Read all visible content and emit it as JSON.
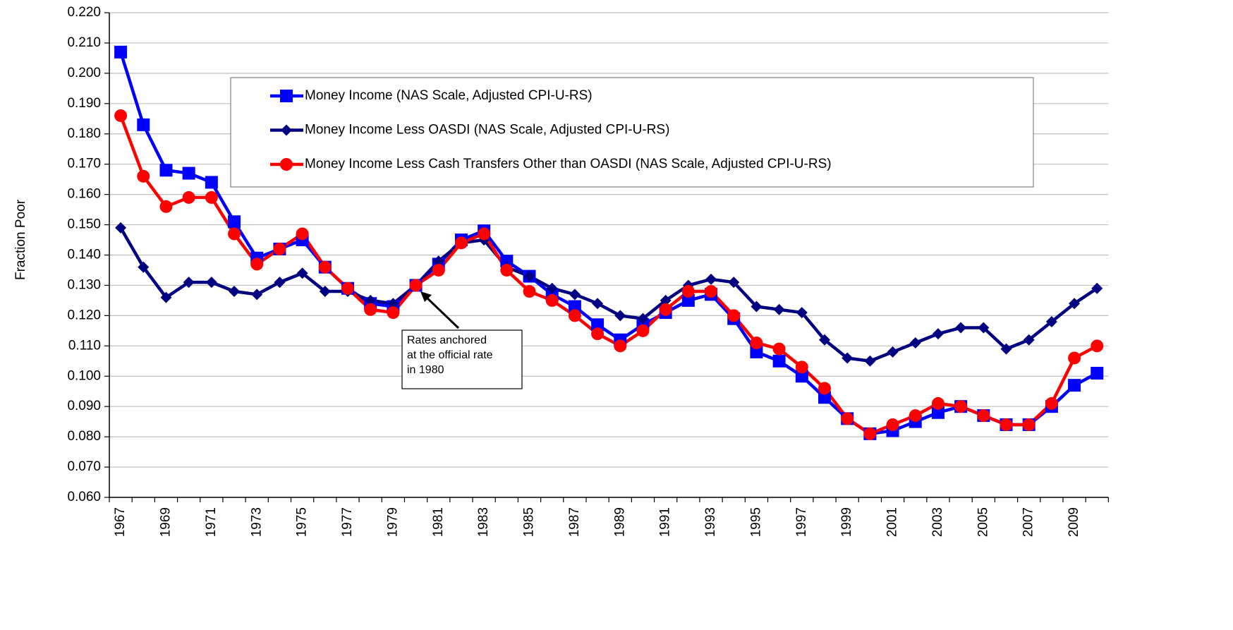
{
  "chart_data": {
    "type": "line",
    "y_label": "Fraction Poor",
    "categories": [
      "1967",
      null,
      "1969",
      null,
      "1971",
      null,
      "1973",
      null,
      "1975",
      null,
      "1977",
      null,
      "1979",
      null,
      "1981",
      null,
      "1983",
      null,
      "1985",
      null,
      "1987",
      null,
      "1989",
      null,
      "1991",
      null,
      "1993",
      null,
      "1995",
      null,
      "1997",
      null,
      "1999",
      null,
      "2001",
      null,
      "2003",
      null,
      "2005",
      null,
      "2007",
      null,
      "2009",
      null
    ],
    "series": [
      {
        "name": "Money Income (NAS Scale, Adjusted CPI-U-RS)",
        "color": "#0000ff",
        "marker": "square",
        "values": [
          0.207,
          0.183,
          0.168,
          0.167,
          0.164,
          0.151,
          0.139,
          0.142,
          0.145,
          0.136,
          0.129,
          0.124,
          0.123,
          0.13,
          0.137,
          0.145,
          0.148,
          0.138,
          0.133,
          0.127,
          0.123,
          0.117,
          0.112,
          0.117,
          0.121,
          0.125,
          0.127,
          0.119,
          0.108,
          0.105,
          0.1,
          0.093,
          0.086,
          0.081,
          0.082,
          0.085,
          0.088,
          0.09,
          0.087,
          0.084,
          0.084,
          0.09,
          0.097,
          0.101
        ]
      },
      {
        "name": "Money Income Less OASDI (NAS Scale, Adjusted CPI-U-RS)",
        "color": "#000080",
        "marker": "diamond",
        "values": [
          0.149,
          0.136,
          0.126,
          0.131,
          0.131,
          0.128,
          0.127,
          0.131,
          0.134,
          0.128,
          0.128,
          0.125,
          0.124,
          0.13,
          0.138,
          0.144,
          0.145,
          0.136,
          0.133,
          0.129,
          0.127,
          0.124,
          0.12,
          0.119,
          0.125,
          0.13,
          0.132,
          0.131,
          0.123,
          0.122,
          0.121,
          0.112,
          0.106,
          0.105,
          0.108,
          0.111,
          0.114,
          0.116,
          0.116,
          0.109,
          0.112,
          0.118,
          0.124,
          0.129
        ]
      },
      {
        "name": "Money Income Less Cash Transfers Other than OASDI (NAS Scale, Adjusted CPI-U-RS)",
        "color": "#ff0000",
        "marker": "circle",
        "values": [
          0.186,
          0.166,
          0.156,
          0.159,
          0.159,
          0.147,
          0.137,
          0.142,
          0.147,
          0.136,
          0.129,
          0.122,
          0.121,
          0.13,
          0.135,
          0.144,
          0.147,
          0.135,
          0.128,
          0.125,
          0.12,
          0.114,
          0.11,
          0.115,
          0.122,
          0.128,
          0.128,
          0.12,
          0.111,
          0.109,
          0.103,
          0.096,
          0.086,
          0.081,
          0.084,
          0.087,
          0.091,
          0.09,
          0.087,
          0.084,
          0.084,
          0.091,
          0.106,
          0.11
        ]
      }
    ],
    "ylim": [
      0.06,
      0.22
    ],
    "yticks": [
      {
        "value": 0.06,
        "label": "0.060"
      },
      {
        "value": 0.07,
        "label": "0.070"
      },
      {
        "value": 0.08,
        "label": "0.080"
      },
      {
        "value": 0.09,
        "label": "0.090"
      },
      {
        "value": 0.1,
        "label": "0.100"
      },
      {
        "value": 0.11,
        "label": "0.110"
      },
      {
        "value": 0.12,
        "label": "0.120"
      },
      {
        "value": 0.13,
        "label": "0.130"
      },
      {
        "value": 0.14,
        "label": "0.140"
      },
      {
        "value": 0.15,
        "label": "0.150"
      },
      {
        "value": 0.16,
        "label": "0.160"
      },
      {
        "value": 0.17,
        "label": "0.170"
      },
      {
        "value": 0.18,
        "label": "0.180"
      },
      {
        "value": 0.19,
        "label": "0.190"
      },
      {
        "value": 0.2,
        "label": "0.200"
      },
      {
        "value": 0.21,
        "label": "0.210"
      },
      {
        "value": 0.22,
        "label": "0.220"
      }
    ],
    "grid": true,
    "annotation": {
      "lines": [
        "Rates anchored",
        "at the official rate",
        "in 1980"
      ]
    }
  }
}
